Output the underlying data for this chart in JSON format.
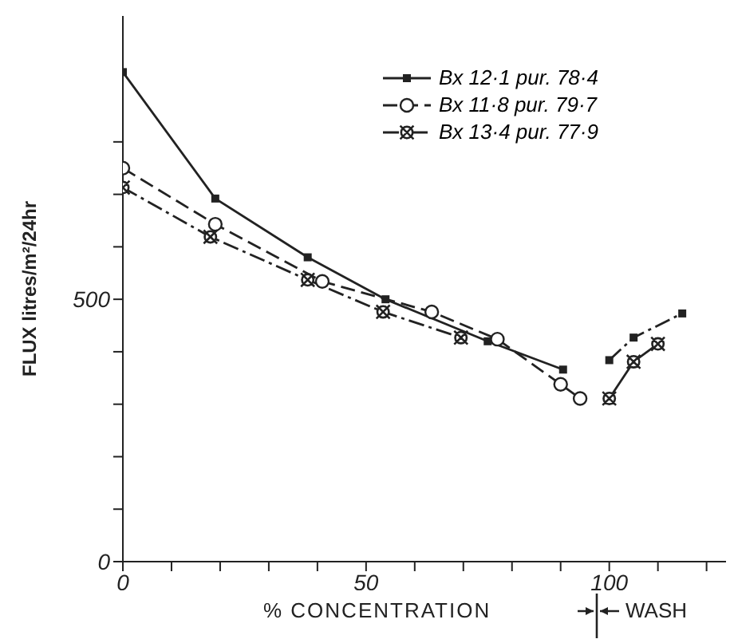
{
  "chart_data": {
    "type": "line",
    "xlabel": "% CONCENTRATION",
    "ylabel": "FLUX litres/m²/24hr",
    "annotations": [
      "WASH"
    ],
    "xlim": [
      0,
      124
    ],
    "xticks": [
      0,
      {
        "value": 10,
        "label": null
      },
      {
        "value": 20,
        "label": null
      },
      {
        "value": 30,
        "label": null
      },
      {
        "value": 40,
        "label": null
      },
      50,
      {
        "value": 60,
        "label": null
      },
      {
        "value": 70,
        "label": null
      },
      {
        "value": 80,
        "label": null
      },
      {
        "value": 90,
        "label": null
      },
      100,
      {
        "value": 110,
        "label": null
      },
      {
        "value": 120,
        "label": null
      }
    ],
    "ylim": [
      0,
      1040
    ],
    "yticks": [
      0,
      {
        "value": 100,
        "label": null
      },
      {
        "value": 200,
        "label": null
      },
      {
        "value": 300,
        "label": null
      },
      {
        "value": 400,
        "label": null
      },
      500,
      {
        "value": 600,
        "label": null
      },
      {
        "value": 700,
        "label": null
      },
      {
        "value": 800,
        "label": null
      }
    ],
    "legend": "top right",
    "series": [
      {
        "name": "Bx 12·1 pur. 78·4",
        "color": "#222222",
        "marker": "square",
        "line_style": "solid",
        "x": [
          0,
          19,
          38,
          54,
          75,
          90.5
        ],
        "values": [
          933,
          692,
          580,
          500,
          420,
          366
        ]
      },
      {
        "color": "#222222",
        "marker": "square",
        "line_style": "dotted",
        "x": [
          100,
          105,
          115
        ],
        "values": [
          384,
          427,
          473
        ]
      },
      {
        "name": "Bx 11·8 pur. 79·7",
        "color": "#222222",
        "marker": "circle",
        "line_style": "dashed",
        "x": [
          0,
          19,
          41,
          63.5,
          77,
          90,
          94
        ],
        "values": [
          750,
          643,
          534,
          476,
          424,
          338,
          311
        ]
      },
      {
        "name": "Bx 13·4 pur. 77·9",
        "color": "#222222",
        "marker": "cross",
        "line_style": "dotted",
        "x": [
          0,
          18,
          38,
          53.5,
          69.5
        ],
        "values": [
          713,
          619,
          537,
          476,
          427
        ]
      },
      {
        "color": "#222222",
        "marker": "cross",
        "line_style": "solid",
        "x": [
          100,
          105,
          110
        ],
        "values": [
          311,
          381,
          415
        ]
      }
    ]
  }
}
